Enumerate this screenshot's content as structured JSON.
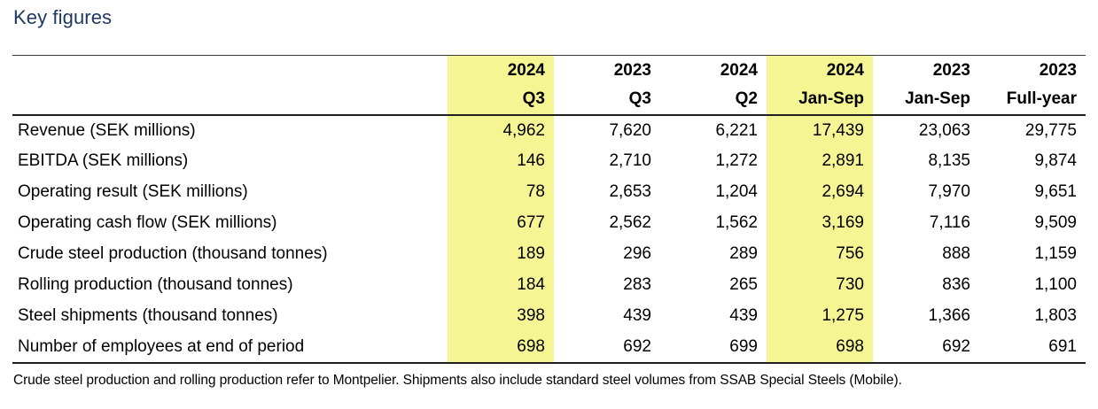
{
  "page": {
    "title": "Key figures"
  },
  "colors": {
    "highlight_yellow": "#F6F593",
    "title_navy": "#1F3864",
    "rule_dark": "#1F1F1F"
  },
  "table": {
    "columns": [
      {
        "line1": "2024",
        "line2": "Q3",
        "highlight": true
      },
      {
        "line1": "2023",
        "line2": "Q3",
        "highlight": false
      },
      {
        "line1": "2024",
        "line2": "Q2",
        "highlight": false
      },
      {
        "line1": "2024",
        "line2": "Jan-Sep",
        "highlight": true
      },
      {
        "line1": "2023",
        "line2": "Jan-Sep",
        "highlight": false
      },
      {
        "line1": "2023",
        "line2": "Full-year",
        "highlight": false
      }
    ],
    "rows": [
      {
        "label": "Revenue (SEK millions)",
        "values": [
          "4,962",
          "7,620",
          "6,221",
          "17,439",
          "23,063",
          "29,775"
        ]
      },
      {
        "label": "EBITDA (SEK millions)",
        "values": [
          "146",
          "2,710",
          "1,272",
          "2,891",
          "8,135",
          "9,874"
        ]
      },
      {
        "label": "Operating result (SEK millions)",
        "values": [
          "78",
          "2,653",
          "1,204",
          "2,694",
          "7,970",
          "9,651"
        ]
      },
      {
        "label": "Operating cash flow (SEK millions)",
        "values": [
          "677",
          "2,562",
          "1,562",
          "3,169",
          "7,116",
          "9,509"
        ]
      },
      {
        "label": "Crude steel production (thousand tonnes)",
        "values": [
          "189",
          "296",
          "289",
          "756",
          "888",
          "1,159"
        ]
      },
      {
        "label": "Rolling production (thousand tonnes)",
        "values": [
          "184",
          "283",
          "265",
          "730",
          "836",
          "1,100"
        ]
      },
      {
        "label": "Steel shipments (thousand tonnes)",
        "values": [
          "398",
          "439",
          "439",
          "1,275",
          "1,366",
          "1,803"
        ]
      },
      {
        "label": "Number of employees at end of period",
        "values": [
          "698",
          "692",
          "699",
          "698",
          "692",
          "691"
        ]
      }
    ],
    "footnote": "Crude steel production and rolling production refer to Montpelier. Shipments also include standard steel volumes from SSAB Special Steels (Mobile)."
  }
}
